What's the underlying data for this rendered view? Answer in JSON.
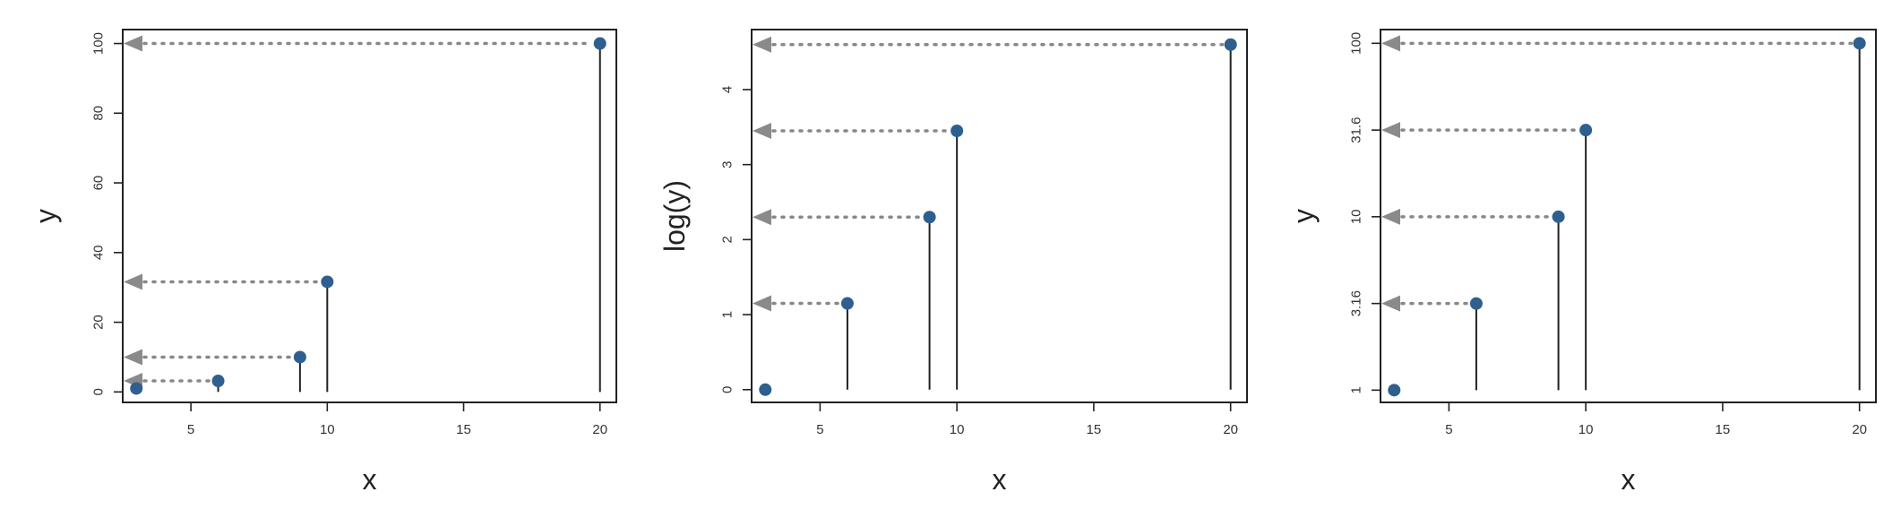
{
  "chart_data": [
    {
      "type": "scatter",
      "xlabel": "x",
      "ylabel": "y",
      "xlim": [
        2.5,
        20.6
      ],
      "ylim": [
        -3,
        104
      ],
      "xticks": [
        5,
        10,
        15,
        20
      ],
      "yticks": [
        0,
        20,
        40,
        60,
        80,
        100
      ],
      "ytick_labels": [
        "0",
        "20",
        "40",
        "60",
        "80",
        "100"
      ],
      "grid": false,
      "x": [
        3,
        6,
        9,
        10,
        20
      ],
      "y": [
        1,
        3.16,
        10,
        31.6,
        100
      ],
      "stems": [
        true,
        true,
        true,
        true,
        true
      ],
      "arrows": [
        false,
        true,
        true,
        true,
        true
      ],
      "point_color": "#2e5f8f",
      "arrow_color": "#8a8a8a"
    },
    {
      "type": "scatter",
      "xlabel": "x",
      "ylabel": "log(y)",
      "xlim": [
        2.5,
        20.6
      ],
      "ylim": [
        -0.17,
        4.8
      ],
      "xticks": [
        5,
        10,
        15,
        20
      ],
      "yticks": [
        0,
        1,
        2,
        3,
        4
      ],
      "ytick_labels": [
        "0",
        "1",
        "2",
        "3",
        "4"
      ],
      "grid": false,
      "x": [
        3,
        6,
        9,
        10,
        20
      ],
      "y": [
        0,
        1.15,
        2.3,
        3.45,
        4.6
      ],
      "stems": [
        false,
        true,
        true,
        true,
        true
      ],
      "arrows": [
        false,
        true,
        true,
        true,
        true
      ],
      "point_color": "#2e5f8f",
      "arrow_color": "#8a8a8a"
    },
    {
      "type": "scatter",
      "xlabel": "x",
      "ylabel": "y",
      "yscale": "log",
      "xlim": [
        2.5,
        20.6
      ],
      "ylim": [
        0.85,
        120
      ],
      "xticks": [
        5,
        10,
        15,
        20
      ],
      "yticks": [
        1,
        3.16,
        10,
        31.6,
        100
      ],
      "ytick_labels": [
        "1",
        "3.16",
        "10",
        "31.6",
        "100"
      ],
      "grid": false,
      "x": [
        3,
        6,
        9,
        10,
        20
      ],
      "y": [
        1,
        3.16,
        10,
        31.6,
        100
      ],
      "stems": [
        false,
        true,
        true,
        true,
        true
      ],
      "arrows": [
        false,
        true,
        true,
        true,
        true
      ],
      "point_color": "#2e5f8f",
      "arrow_color": "#8a8a8a"
    }
  ]
}
